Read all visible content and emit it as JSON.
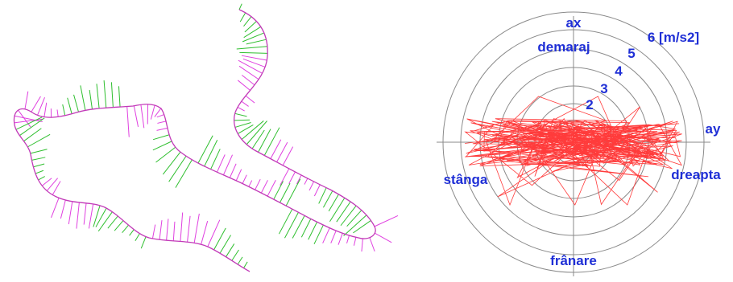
{
  "diagram": {
    "left_panel": {
      "colors": {
        "track": "#c23ab8",
        "vectors_green": "#2fbf2f",
        "vectors_magenta": "#e040e0"
      }
    },
    "right_panel": {
      "labels": {
        "top_axis": "ax",
        "top_meaning": "demaraj",
        "scale_2": "2",
        "scale_3": "3",
        "scale_4": "4",
        "scale_5": "5",
        "scale_6": "6 [m/s2]",
        "right_axis": "ay",
        "right_meaning": "dreapta",
        "left_meaning": "stânga",
        "bottom_meaning": "frânare"
      },
      "colors": {
        "rings": "#8a8a8a",
        "trace": "#ff3b3b",
        "labels": "#1f2fd6"
      }
    }
  }
}
